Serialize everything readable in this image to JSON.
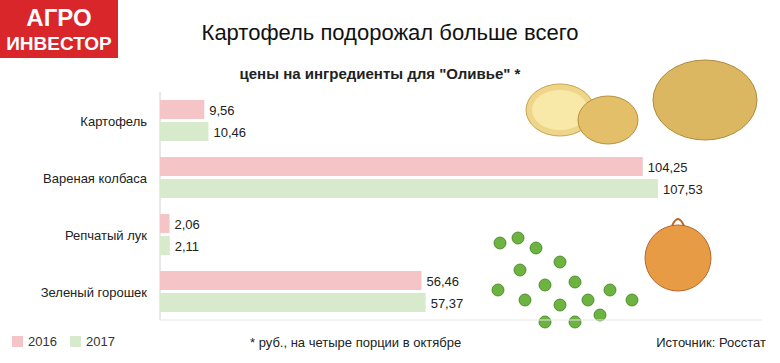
{
  "chart_data": {
    "type": "bar",
    "orientation": "horizontal",
    "logo": [
      "АГРО",
      "ИНВЕСТОР"
    ],
    "title": "Картофель подорожал больше всего",
    "subtitle": "цены на ингредиенты для \"Оливье\" *",
    "categories": [
      "Картофель",
      "Вареная колбаса",
      "Репчатый лук",
      "Зеленый горошек"
    ],
    "series": [
      {
        "name": "2016",
        "color": "#f4c4c7",
        "values": [
          9.56,
          104.25,
          2.06,
          56.46
        ],
        "value_labels": [
          "9,56",
          "104,25",
          "2,06",
          "56,46"
        ]
      },
      {
        "name": "2017",
        "color": "#d7eacb",
        "values": [
          10.46,
          107.53,
          2.11,
          57.37
        ],
        "value_labels": [
          "10,46",
          "107,53",
          "2,11",
          "57,37"
        ]
      }
    ],
    "xlim": [
      0,
      130
    ],
    "xticks": [],
    "tick_labels": "y",
    "data_labels": true,
    "grid": false,
    "legend": "bottom-left",
    "annotations": [
      "* руб., на четыре порции в октябре",
      "Источник: Росстат"
    ]
  }
}
